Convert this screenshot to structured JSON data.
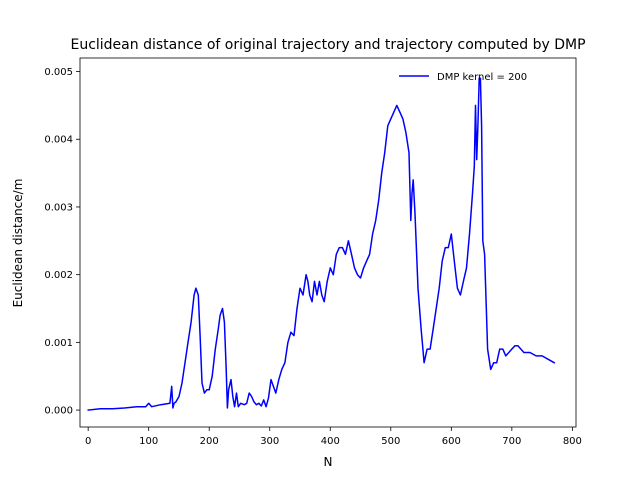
{
  "chart_data": {
    "type": "line",
    "title": "Euclidean distance of original trajectory and trajectory computed by DMP",
    "xlabel": "N",
    "ylabel": "Euclidean distance/m",
    "xlim": [
      -13.5,
      806
    ],
    "ylim": [
      -0.00025,
      0.0052
    ],
    "xticks": [
      0,
      100,
      200,
      300,
      400,
      500,
      600,
      700,
      800
    ],
    "xtick_labels": [
      "0",
      "100",
      "200",
      "300",
      "400",
      "500",
      "600",
      "700",
      "800"
    ],
    "yticks": [
      0,
      0.001,
      0.002,
      0.003,
      0.004,
      0.005
    ],
    "ytick_labels": [
      "0.000",
      "0.001",
      "0.002",
      "0.003",
      "0.004",
      "0.005"
    ],
    "grid": false,
    "legend_position": "upper right",
    "legend_frame": false,
    "series": [
      {
        "name": "DMP kernel = 200",
        "color": "#0000ff",
        "x": [
          0,
          20,
          40,
          60,
          80,
          95,
          100,
          105,
          120,
          135,
          138,
          140,
          142,
          145,
          150,
          155,
          160,
          165,
          170,
          175,
          178,
          182,
          185,
          188,
          192,
          196,
          200,
          205,
          210,
          215,
          218,
          222,
          225,
          228,
          230,
          232,
          236,
          239,
          242,
          245,
          248,
          252,
          258,
          262,
          266,
          270,
          274,
          278,
          282,
          286,
          290,
          294,
          298,
          302,
          306,
          310,
          315,
          320,
          325,
          330,
          335,
          340,
          345,
          350,
          355,
          360,
          363,
          366,
          370,
          374,
          378,
          382,
          386,
          390,
          395,
          400,
          405,
          410,
          415,
          420,
          425,
          430,
          435,
          440,
          445,
          450,
          455,
          460,
          465,
          470,
          475,
          480,
          485,
          490,
          495,
          500,
          505,
          510,
          515,
          520,
          525,
          530,
          533,
          535,
          537,
          540,
          545,
          550,
          555,
          560,
          565,
          570,
          575,
          580,
          585,
          590,
          595,
          600,
          605,
          610,
          615,
          620,
          625,
          630,
          635,
          638,
          640,
          642,
          644,
          646,
          648,
          650,
          652,
          655,
          660,
          665,
          670,
          675,
          680,
          685,
          690,
          695,
          700,
          705,
          710,
          715,
          720,
          730,
          740,
          750,
          760,
          770
        ],
        "values": [
          0.0,
          2e-05,
          2e-05,
          3e-05,
          5e-05,
          5e-05,
          0.0001,
          5e-05,
          8e-05,
          0.0001,
          0.00035,
          3e-05,
          0.0001,
          0.00012,
          0.0002,
          0.0004,
          0.0007,
          0.001,
          0.0013,
          0.0017,
          0.0018,
          0.0017,
          0.0011,
          0.0004,
          0.00025,
          0.0003,
          0.0003,
          0.0005,
          0.0009,
          0.0012,
          0.0014,
          0.0015,
          0.0013,
          0.0006,
          3e-05,
          0.0003,
          0.00045,
          0.0002,
          5e-05,
          0.00025,
          5e-05,
          0.0001,
          8e-05,
          0.0001,
          0.00025,
          0.0002,
          0.00012,
          8e-05,
          0.0001,
          6e-05,
          0.00015,
          5e-05,
          0.00018,
          0.00045,
          0.00035,
          0.00025,
          0.00045,
          0.0006,
          0.0007,
          0.001,
          0.00115,
          0.0011,
          0.0015,
          0.0018,
          0.0017,
          0.002,
          0.0019,
          0.0017,
          0.0016,
          0.0019,
          0.0017,
          0.0019,
          0.0017,
          0.0016,
          0.0019,
          0.0021,
          0.002,
          0.0023,
          0.0024,
          0.0024,
          0.0023,
          0.0025,
          0.0023,
          0.0021,
          0.002,
          0.00195,
          0.0021,
          0.0022,
          0.0023,
          0.0026,
          0.0028,
          0.0031,
          0.0035,
          0.0038,
          0.0042,
          0.0043,
          0.0044,
          0.0045,
          0.0044,
          0.0043,
          0.0041,
          0.0038,
          0.0028,
          0.0032,
          0.0034,
          0.0029,
          0.0018,
          0.0012,
          0.0007,
          0.0009,
          0.0009,
          0.0012,
          0.0015,
          0.0018,
          0.0022,
          0.0024,
          0.0024,
          0.0026,
          0.0022,
          0.0018,
          0.0017,
          0.0019,
          0.0021,
          0.0026,
          0.0032,
          0.0036,
          0.0045,
          0.0037,
          0.0042,
          0.0049,
          0.0049,
          0.0042,
          0.0025,
          0.0023,
          0.0009,
          0.0006,
          0.0007,
          0.0007,
          0.0009,
          0.0009,
          0.0008,
          0.00085,
          0.0009,
          0.00095,
          0.00095,
          0.0009,
          0.00085,
          0.00085,
          0.0008,
          0.0008,
          0.00075,
          0.0007
        ]
      }
    ]
  }
}
